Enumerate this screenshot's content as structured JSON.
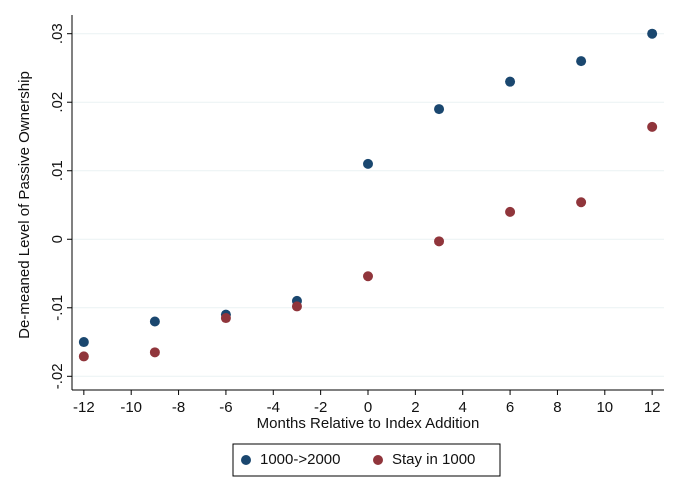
{
  "chart_data": {
    "type": "scatter",
    "x_label": "Months Relative to Index Addition",
    "y_label": "De-meaned Level of Passive Ownership",
    "x": [
      -12,
      -9,
      -6,
      -3,
      0,
      3,
      6,
      9,
      12
    ],
    "series": [
      {
        "name": "1000->2000",
        "color": "#1a476f",
        "values": [
          -0.015,
          -0.012,
          -0.011,
          -0.009,
          0.011,
          0.019,
          0.023,
          0.026,
          0.03
        ]
      },
      {
        "name": "Stay in 1000",
        "color": "#90353b",
        "values": [
          -0.0171,
          -0.0165,
          -0.0115,
          -0.0098,
          -0.0054,
          -0.0003,
          0.004,
          0.0054,
          0.0164
        ]
      }
    ],
    "xlim": [
      -12.5,
      12.5
    ],
    "ylim": [
      -0.022,
      0.032
    ],
    "xticks": [
      -12,
      -10,
      -8,
      -6,
      -4,
      -2,
      0,
      2,
      4,
      6,
      8,
      10,
      12
    ],
    "yticks": [
      {
        "value": -0.02,
        "label": "-.02"
      },
      {
        "value": -0.01,
        "label": "-.01"
      },
      0,
      {
        "value": 0.01,
        "label": ".01"
      },
      {
        "value": 0.02,
        "label": ".02"
      },
      {
        "value": 0.03,
        "label": ".03"
      }
    ],
    "grid": true,
    "legend": "bottom"
  }
}
